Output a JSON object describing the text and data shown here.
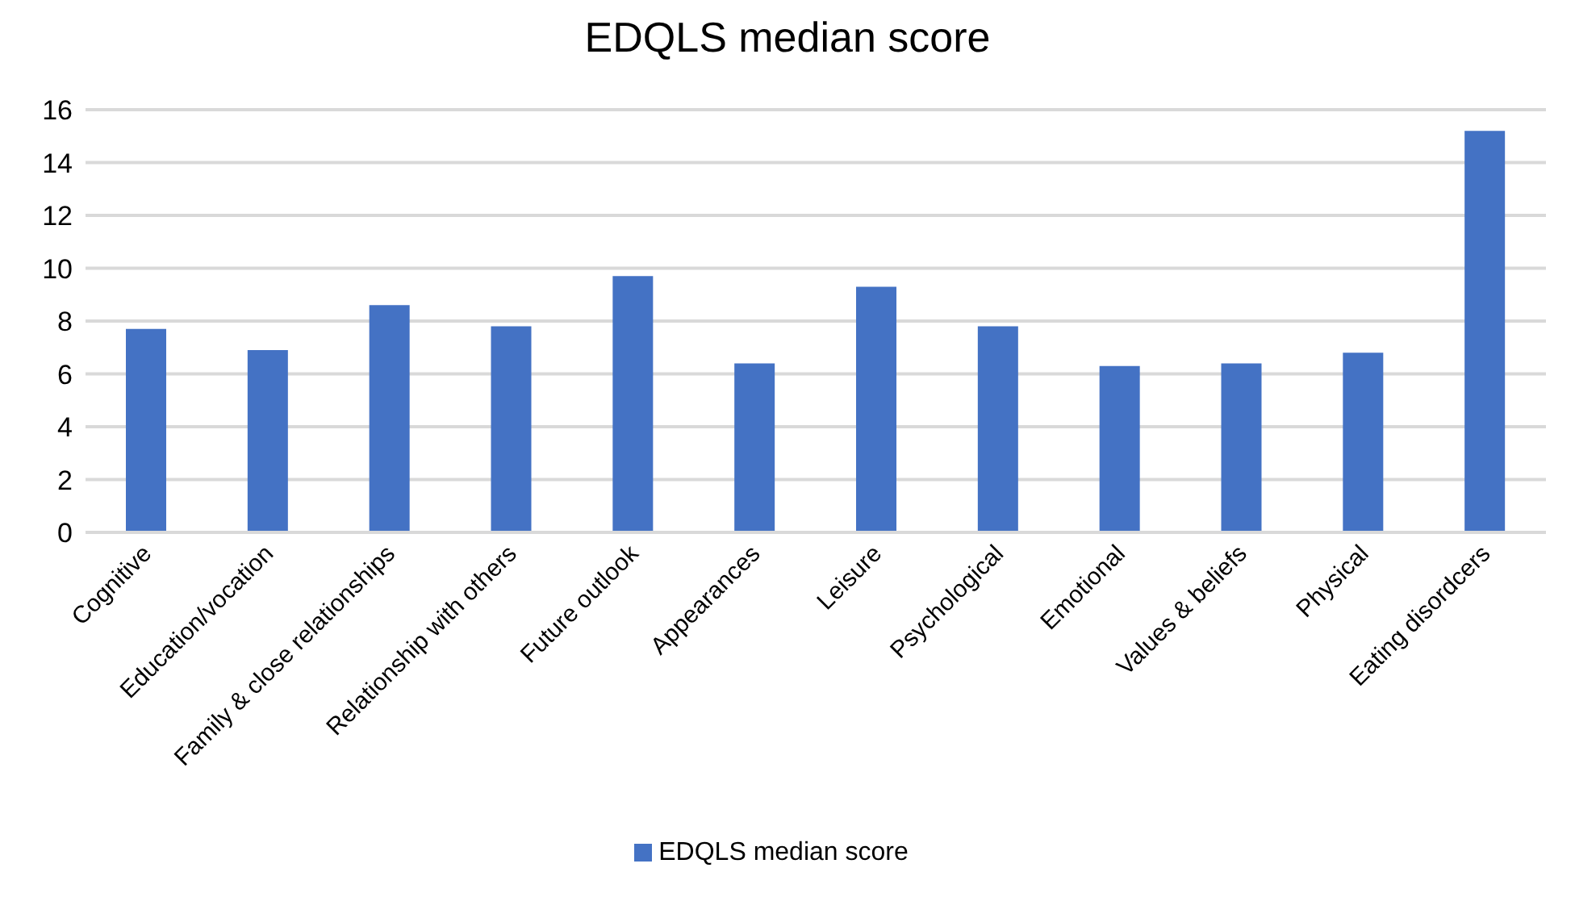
{
  "chart_data": {
    "type": "bar",
    "title": "EDQLS median score",
    "categories": [
      "Cognitive",
      "Education/vocation",
      "Family & close relationships",
      "Relationship with others",
      "Future outlook",
      "Appearances",
      "Leisure",
      "Psychological",
      "Emotional",
      "Values & beliefs",
      "Physical",
      "Eating disordcers"
    ],
    "series": [
      {
        "name": "EDQLS median score",
        "color": "#4472c4",
        "values": [
          7.7,
          6.9,
          8.6,
          7.8,
          9.7,
          6.4,
          9.3,
          7.8,
          6.3,
          6.4,
          6.8,
          15.2
        ]
      }
    ],
    "ylim": [
      0,
      16
    ],
    "yticks": [
      0,
      2,
      4,
      6,
      8,
      10,
      12,
      14,
      16
    ],
    "grid": "y",
    "legend": "bottom"
  }
}
